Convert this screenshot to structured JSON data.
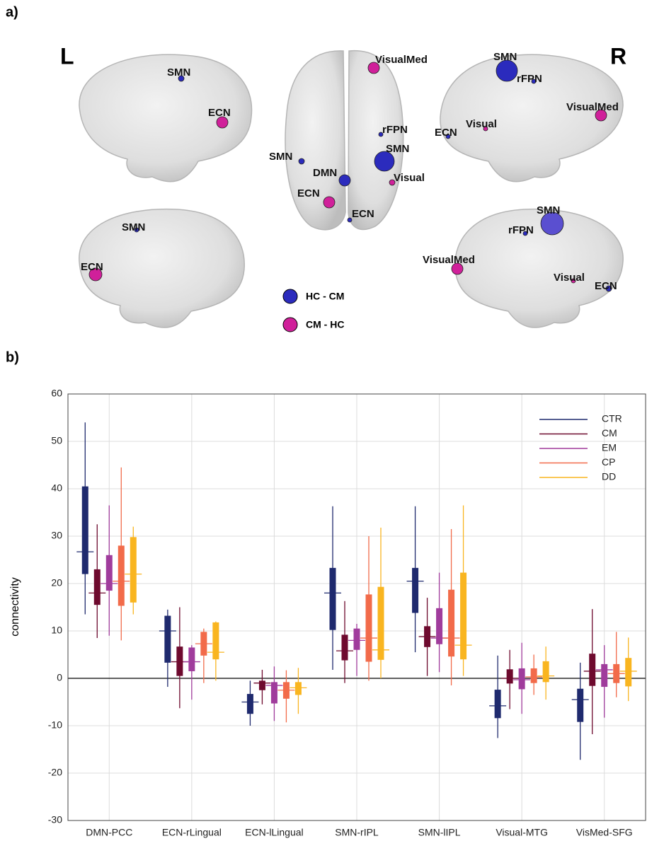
{
  "panel_a": {
    "label": "a)",
    "hemisphere_left": "L",
    "hemisphere_right": "R",
    "nodes": [
      {
        "label": "SMN",
        "color": "#2b2bbd"
      },
      {
        "label": "ECN",
        "color": "#d0209a"
      },
      {
        "label": "VisualMed",
        "color": "#d0209a"
      },
      {
        "label": "rFPN",
        "color": "#2b2bbd"
      },
      {
        "label": "SMN",
        "color": "#2b2bbd"
      },
      {
        "label": "SMN",
        "color": "#2b2bbd"
      },
      {
        "label": "DMN",
        "color": "#2b2bbd"
      },
      {
        "label": "Visual",
        "color": "#d0209a"
      },
      {
        "label": "ECN",
        "color": "#d0209a"
      },
      {
        "label": "ECN",
        "color": "#2b2bbd"
      },
      {
        "label": "SMN",
        "color": "#2b2bbd"
      },
      {
        "label": "rFPN",
        "color": "#2b2bbd"
      },
      {
        "label": "VisualMed",
        "color": "#d0209a"
      },
      {
        "label": "Visual",
        "color": "#d0209a"
      },
      {
        "label": "ECN",
        "color": "#2b2bbd"
      },
      {
        "label": "SMN",
        "color": "#2b2bbd"
      },
      {
        "label": "ECN",
        "color": "#d0209a"
      },
      {
        "label": "SMN",
        "color": "#5a4fd0"
      },
      {
        "label": "rFPN",
        "color": "#2b2bbd"
      },
      {
        "label": "VisualMed",
        "color": "#d0209a"
      },
      {
        "label": "Visual",
        "color": "#d0209a"
      },
      {
        "label": "ECN",
        "color": "#2b2bbd"
      }
    ],
    "legend": [
      {
        "label": "HC - CM",
        "color": "#2b2bbd"
      },
      {
        "label": "CM - HC",
        "color": "#d0209a"
      }
    ]
  },
  "chart_data": {
    "type": "box",
    "panel_label": "b)",
    "y_label": "connectivity",
    "categories": [
      "DMN-PCC",
      "ECN-rLingual",
      "ECN-lLingual",
      "SMN-rIPL",
      "SMN-lIPL",
      "Visual-MTG",
      "VisMed-SFG"
    ],
    "ylim": [
      -30,
      60
    ],
    "yticks": [
      -30,
      -20,
      -10,
      0,
      10,
      20,
      30,
      40,
      50,
      60
    ],
    "grid": true,
    "legend_position": "upper right",
    "series": [
      {
        "name": "CTR",
        "color": "#1f2a6e",
        "low": [
          13.5,
          -1.8,
          -10,
          1.8,
          5.5,
          -12.6,
          -17.2
        ],
        "q1": [
          22,
          3.3,
          -7.5,
          10.2,
          13.8,
          -8.4,
          -9.2
        ],
        "median": [
          26.7,
          10,
          -5,
          18,
          20.5,
          -5.8,
          -4.5
        ],
        "q3": [
          40.5,
          13.2,
          -3.3,
          23.3,
          23.3,
          -2.4,
          -2.2
        ],
        "high": [
          54,
          14.5,
          -0.5,
          36.3,
          36.3,
          4.8,
          3.3
        ]
      },
      {
        "name": "CM",
        "color": "#6e0a2e",
        "low": [
          8.5,
          -6.3,
          -5.5,
          -1,
          0.5,
          -6.5,
          -11.8
        ],
        "q1": [
          15.5,
          0.5,
          -2.5,
          3.8,
          6.6,
          -1.1,
          -1.6
        ],
        "median": [
          18,
          3.5,
          -1,
          5.8,
          8.8,
          0,
          1.5
        ],
        "q3": [
          23,
          6.7,
          -0.5,
          9.2,
          11,
          1.9,
          5.2
        ],
        "high": [
          32.5,
          15,
          1.8,
          16.3,
          17,
          6,
          14.6
        ]
      },
      {
        "name": "EM",
        "color": "#a03c9c",
        "low": [
          9,
          -4.5,
          -9,
          0.5,
          1.3,
          -7.5,
          -8.3
        ],
        "q1": [
          18.5,
          1.5,
          -5.3,
          6,
          7.2,
          -2.3,
          -1.8
        ],
        "median": [
          20,
          3.5,
          -1.5,
          8,
          8.5,
          -0.3,
          1.8
        ],
        "q3": [
          26,
          6.5,
          -0.8,
          10.5,
          14.8,
          2.1,
          3
        ],
        "high": [
          36.5,
          7,
          2.5,
          11.5,
          22.3,
          7.5,
          7
        ]
      },
      {
        "name": "CP",
        "color": "#f26b4a",
        "low": [
          8,
          -1,
          -9.3,
          -0.5,
          -1.5,
          -3.5,
          -4
        ],
        "q1": [
          15.3,
          4.8,
          -4.3,
          3.5,
          4.6,
          -1,
          -1
        ],
        "median": [
          20.5,
          7.3,
          -2.5,
          8.5,
          8.5,
          0.3,
          1
        ],
        "q3": [
          28,
          9.8,
          -0.8,
          17.7,
          18.7,
          2.1,
          3
        ],
        "high": [
          44.5,
          10.5,
          1.7,
          30,
          31.5,
          5,
          9.8
        ]
      },
      {
        "name": "DD",
        "color": "#f9b520",
        "low": [
          13.5,
          -0.5,
          -7.5,
          0,
          0.5,
          -4.5,
          -4.8
        ],
        "q1": [
          16,
          4,
          -3.5,
          3.9,
          4,
          -0.8,
          -1.7
        ],
        "median": [
          22,
          5.5,
          -2,
          6,
          7,
          0.5,
          1.5
        ],
        "q3": [
          29.8,
          11.8,
          -0.8,
          19.3,
          22.3,
          3.6,
          4.3
        ],
        "high": [
          32,
          12,
          2.2,
          31.8,
          36.5,
          6.7,
          8.6
        ]
      }
    ]
  }
}
